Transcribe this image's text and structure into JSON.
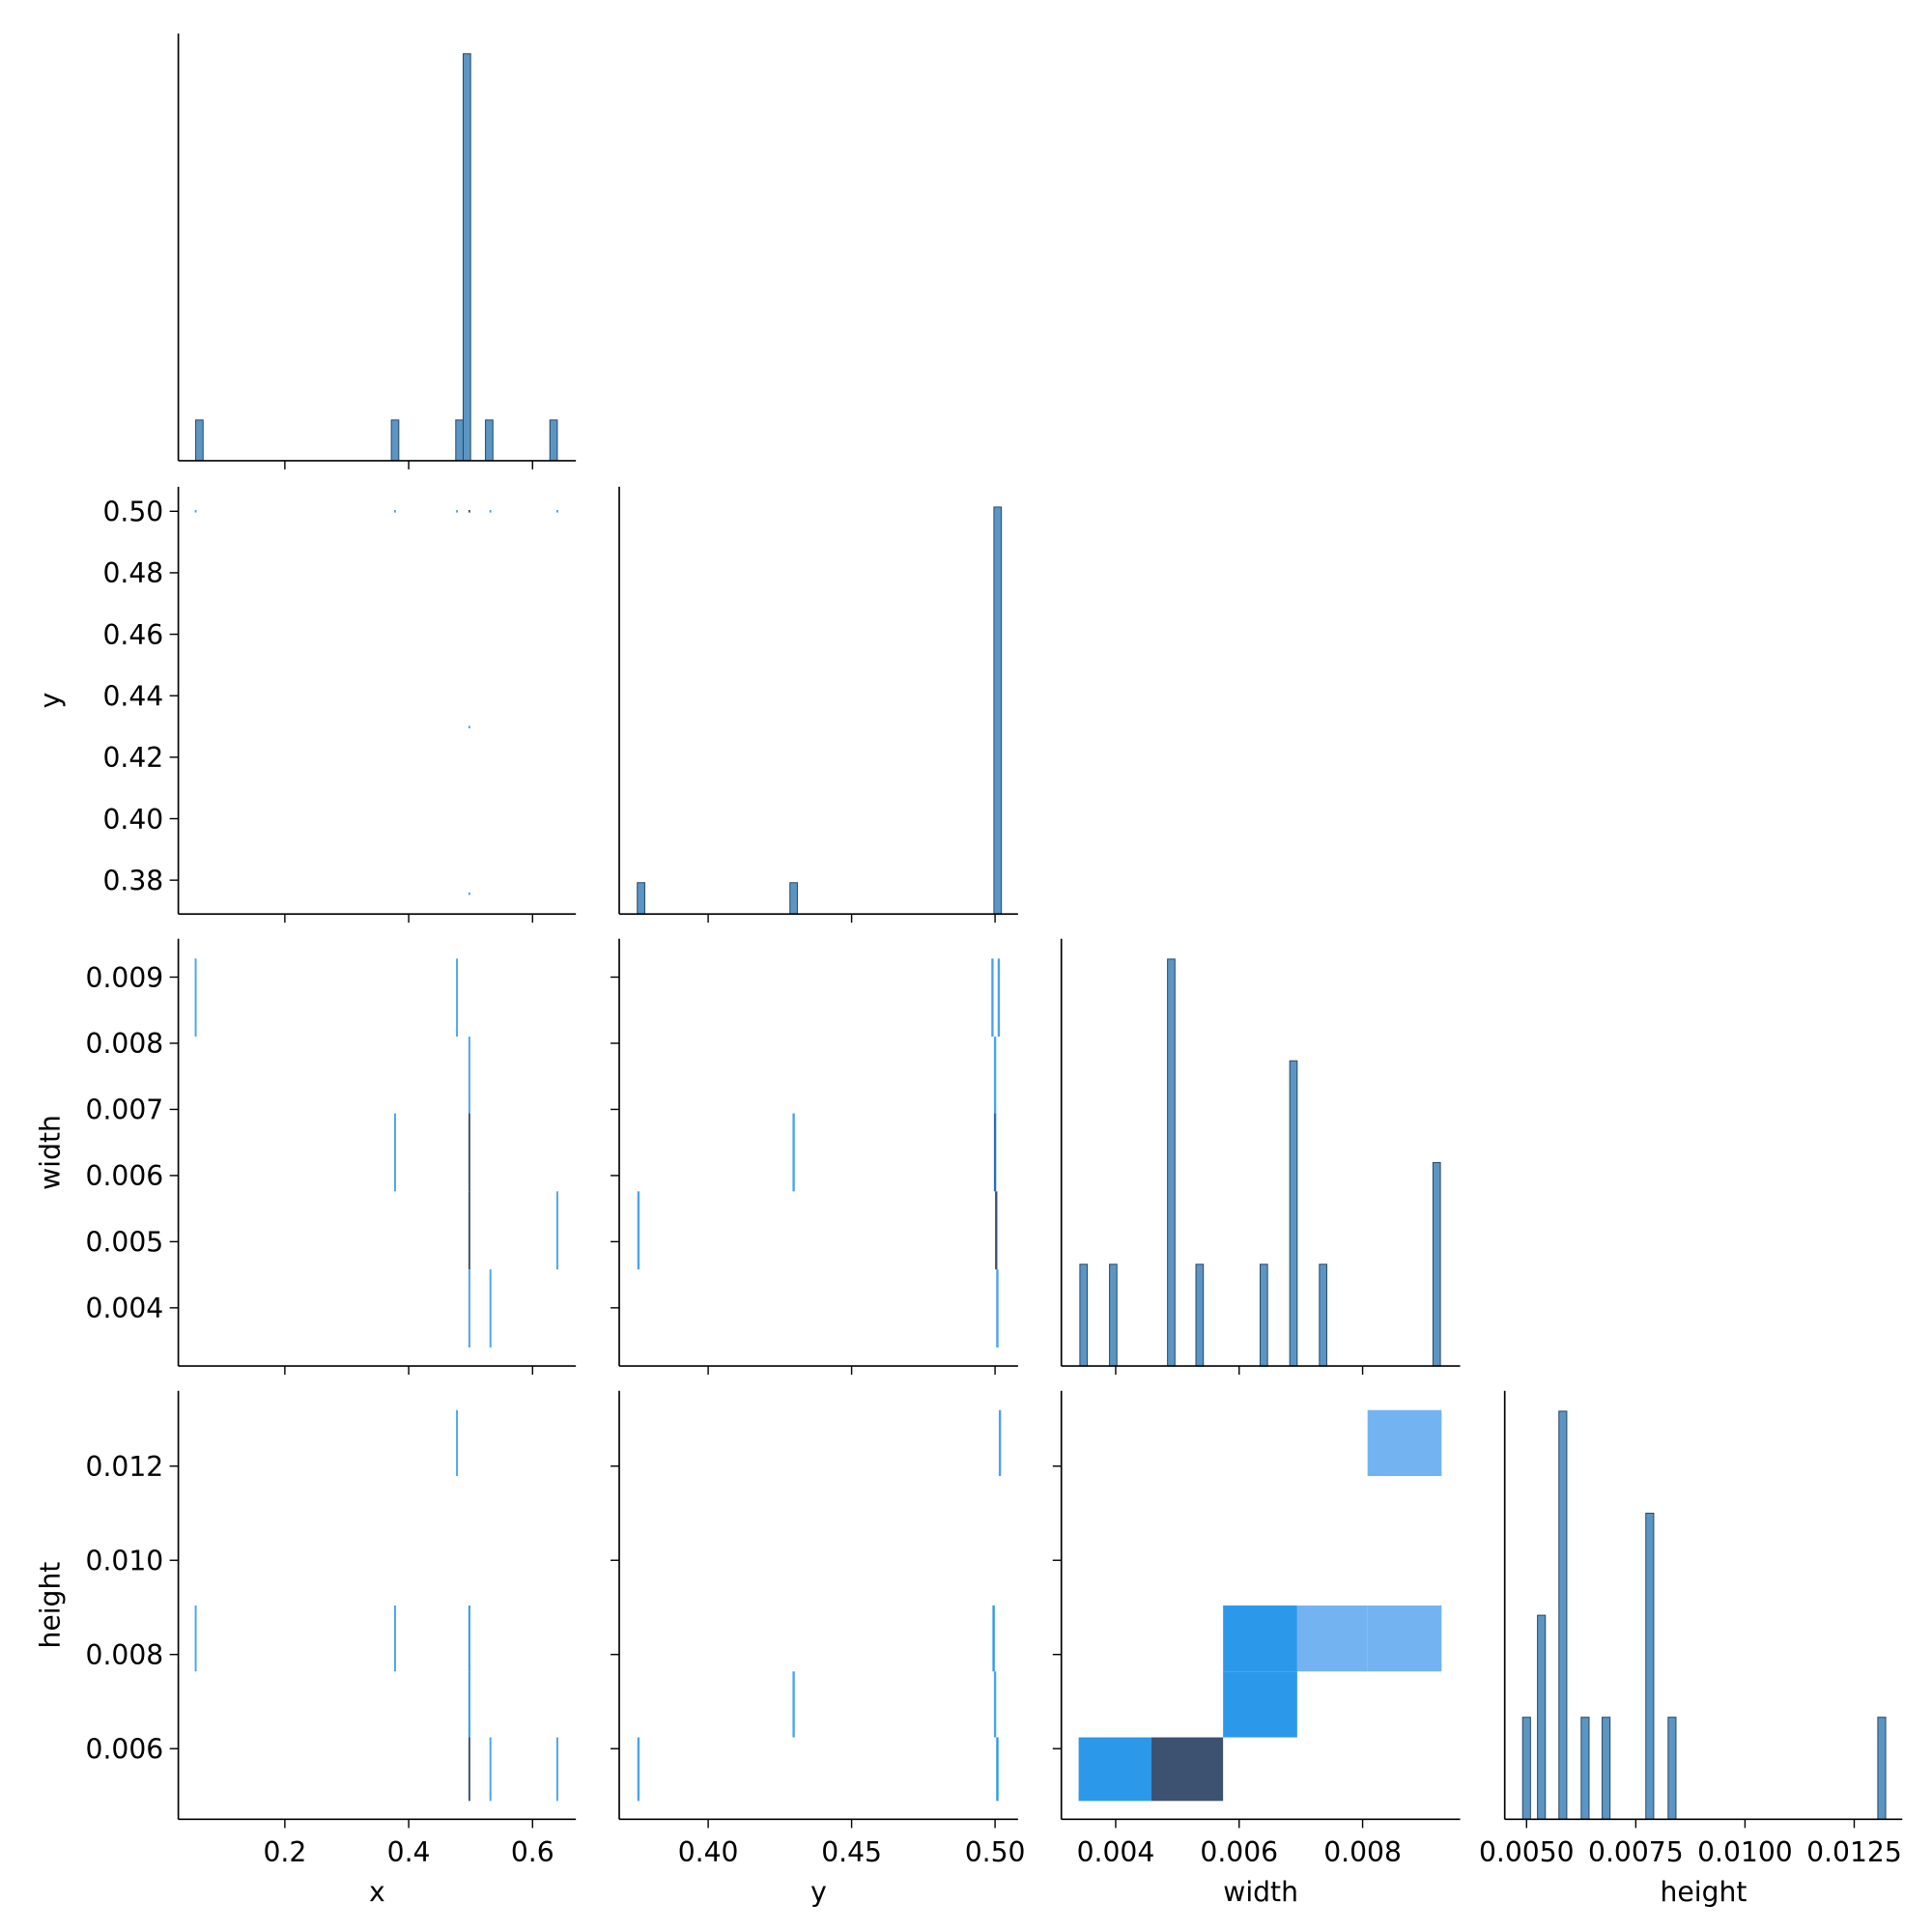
{
  "chart_data": [
    {
      "type": "histogram",
      "xlim": [
        0.028,
        0.67
      ],
      "xticks": [
        0.2,
        0.4,
        0.6
      ],
      "ylim": [
        0,
        10.5
      ],
      "bins": [
        0.056,
        0.068,
        0.372,
        0.384,
        0.476,
        0.488,
        0.5,
        0.524,
        0.536,
        0.628,
        0.64
      ],
      "counts": [
        1,
        0,
        1,
        0,
        1,
        10,
        0,
        1,
        0,
        1
      ],
      "color": "#5b95c4",
      "edgecolor": "#2b4a66"
    },
    {
      "type": "hist2d",
      "ylabel": "y",
      "xlim": [
        0.028,
        0.67
      ],
      "xticks": [
        0.2,
        0.4,
        0.6
      ],
      "ylim": [
        0.369,
        0.508
      ],
      "yticks": [
        0.38,
        {
          "value": 0.4,
          "label": "0.40"
        },
        0.42,
        0.44,
        0.46,
        0.48,
        {
          "value": 0.5,
          "label": "0.50"
        }
      ],
      "cells": [
        {
          "x": [
            0.0545,
            0.0575
          ],
          "y": [
            0.4996,
            0.5004
          ],
          "count": 1,
          "color": "#4aa3ee"
        },
        {
          "x": [
            0.3765,
            0.3795
          ],
          "y": [
            0.4996,
            0.5004
          ],
          "count": 1,
          "color": "#4aa3ee"
        },
        {
          "x": [
            0.4765,
            0.4795
          ],
          "y": [
            0.4996,
            0.5004
          ],
          "count": 1,
          "color": "#4aa3ee"
        },
        {
          "x": [
            0.4965,
            0.4995
          ],
          "y": [
            0.4996,
            0.5004
          ],
          "count": 9,
          "color": "#3d5170"
        },
        {
          "x": [
            0.5305,
            0.5335
          ],
          "y": [
            0.4996,
            0.5004
          ],
          "count": 1,
          "color": "#4aa3ee"
        },
        {
          "x": [
            0.6385,
            0.6415
          ],
          "y": [
            0.4996,
            0.5004
          ],
          "count": 1,
          "color": "#4aa3ee"
        },
        {
          "x": [
            0.4965,
            0.4995
          ],
          "y": [
            0.4294,
            0.4302
          ],
          "count": 1,
          "color": "#4aa3ee"
        },
        {
          "x": [
            0.4965,
            0.4995
          ],
          "y": [
            0.3752,
            0.376
          ],
          "count": 1,
          "color": "#4aa3ee"
        }
      ]
    },
    {
      "type": "histogram",
      "xlim": [
        0.369,
        0.508
      ],
      "xticks": [
        {
          "value": 0.4,
          "label": "0.40"
        },
        0.45,
        {
          "value": 0.5,
          "label": "0.50"
        }
      ],
      "ylim": [
        0,
        13.65
      ],
      "bins": [
        0.3753,
        0.3779,
        0.4285,
        0.4311,
        0.4996,
        0.5022
      ],
      "counts": [
        1,
        0,
        1,
        0,
        13
      ],
      "color": "#5b95c4",
      "edgecolor": "#2b4a66"
    },
    {
      "type": "hist2d",
      "ylabel": "width",
      "xlim": [
        0.028,
        0.67
      ],
      "xticks": [
        0.2,
        0.4,
        0.6
      ],
      "ylim": [
        0.00312,
        0.00958
      ],
      "yticks": [
        0.004,
        0.005,
        0.006,
        0.007,
        0.008,
        0.009
      ],
      "cells": [
        {
          "x": [
            0.0545,
            0.0575
          ],
          "y": [
            0.0081,
            0.00928
          ],
          "count": 1,
          "color": "#4aa3ee"
        },
        {
          "x": [
            0.4765,
            0.4795
          ],
          "y": [
            0.0081,
            0.00928
          ],
          "count": 1,
          "color": "#4aa3ee"
        },
        {
          "x": [
            0.4965,
            0.4995
          ],
          "y": [
            0.00694,
            0.0081
          ],
          "count": 1,
          "color": "#4aa3ee"
        },
        {
          "x": [
            0.4965,
            0.4995
          ],
          "y": [
            0.00576,
            0.00694
          ],
          "count": 3,
          "color": "#3d5170"
        },
        {
          "x": [
            0.4965,
            0.4995
          ],
          "y": [
            0.00458,
            0.00576
          ],
          "count": 3,
          "color": "#3d5170"
        },
        {
          "x": [
            0.4965,
            0.4995
          ],
          "y": [
            0.0034,
            0.00458
          ],
          "count": 1,
          "color": "#4aa3ee"
        },
        {
          "x": [
            0.3765,
            0.3795
          ],
          "y": [
            0.00576,
            0.00694
          ],
          "count": 1,
          "color": "#4aa3ee"
        },
        {
          "x": [
            0.6385,
            0.6415
          ],
          "y": [
            0.00458,
            0.00576
          ],
          "count": 1,
          "color": "#4aa3ee"
        },
        {
          "x": [
            0.5305,
            0.5335
          ],
          "y": [
            0.0034,
            0.00458
          ],
          "count": 1,
          "color": "#4aa3ee"
        }
      ]
    },
    {
      "type": "hist2d",
      "xlim": [
        0.369,
        0.508
      ],
      "xticks": [
        {
          "value": 0.4,
          "label": "0.40"
        },
        0.45,
        {
          "value": 0.5,
          "label": "0.50"
        }
      ],
      "ylim": [
        0.00312,
        0.00958
      ],
      "yticks": [
        0.004,
        0.005,
        0.006,
        0.007,
        0.008,
        0.009
      ],
      "cells": [
        {
          "x": [
            0.3753,
            0.3761
          ],
          "y": [
            0.00458,
            0.00576
          ],
          "count": 1,
          "color": "#4aa3ee"
        },
        {
          "x": [
            0.4294,
            0.4302
          ],
          "y": [
            0.00576,
            0.00694
          ],
          "count": 1,
          "color": "#4aa3ee"
        },
        {
          "x": [
            0.4987,
            0.4995
          ],
          "y": [
            0.0081,
            0.00928
          ],
          "count": 1,
          "color": "#4aa3ee"
        },
        {
          "x": [
            0.5009,
            0.5017
          ],
          "y": [
            0.0081,
            0.00928
          ],
          "count": 1,
          "color": "#4aa3ee"
        },
        {
          "x": [
            0.4996,
            0.5004
          ],
          "y": [
            0.00694,
            0.0081
          ],
          "count": 1,
          "color": "#4aa3ee"
        },
        {
          "x": [
            0.4996,
            0.5004
          ],
          "y": [
            0.00576,
            0.00694
          ],
          "count": 3,
          "color": "#2b6fb0"
        },
        {
          "x": [
            0.5,
            0.5008
          ],
          "y": [
            0.00458,
            0.00576
          ],
          "count": 4,
          "color": "#3d5170"
        },
        {
          "x": [
            0.5004,
            0.5012
          ],
          "y": [
            0.0034,
            0.00458
          ],
          "count": 2,
          "color": "#4aa3ee"
        }
      ]
    },
    {
      "type": "histogram",
      "xlim": [
        0.00312,
        0.00958
      ],
      "xticks": [
        0.004,
        0.006,
        0.008
      ],
      "ylim": [
        0,
        4.2
      ],
      "bins": [
        0.00342,
        0.00354,
        0.0039,
        0.00402,
        0.00484,
        0.00496,
        0.0053,
        0.00542,
        0.00634,
        0.00646,
        0.00682,
        0.00694,
        0.0073,
        0.00742,
        0.00914,
        0.00926
      ],
      "counts": [
        1,
        0,
        1,
        0,
        4,
        0,
        1,
        0,
        1,
        0,
        3,
        0,
        1,
        0,
        2
      ],
      "color": "#5b95c4",
      "edgecolor": "#2b4a66"
    },
    {
      "type": "hist2d",
      "xlabel": "x",
      "ylabel": "height",
      "xlim": [
        0.028,
        0.67
      ],
      "xticks": [
        0.2,
        0.4,
        0.6
      ],
      "ylim": [
        0.0045,
        0.0136
      ],
      "yticks": [
        0.006,
        0.008,
        {
          "value": 0.01,
          "label": "0.010"
        },
        0.012
      ],
      "cells": [
        {
          "x": [
            0.4765,
            0.4795
          ],
          "y": [
            0.01179,
            0.01319
          ],
          "count": 1,
          "color": "#4aa3ee"
        },
        {
          "x": [
            0.0545,
            0.0575
          ],
          "y": [
            0.00764,
            0.00904
          ],
          "count": 1,
          "color": "#4aa3ee"
        },
        {
          "x": [
            0.3765,
            0.3795
          ],
          "y": [
            0.00764,
            0.00904
          ],
          "count": 1,
          "color": "#4aa3ee"
        },
        {
          "x": [
            0.4965,
            0.4995
          ],
          "y": [
            0.00764,
            0.00904
          ],
          "count": 2,
          "color": "#2b98ea"
        },
        {
          "x": [
            0.4965,
            0.4995
          ],
          "y": [
            0.00624,
            0.00764
          ],
          "count": 2,
          "color": "#2b98ea"
        },
        {
          "x": [
            0.4965,
            0.4995
          ],
          "y": [
            0.00489,
            0.00624
          ],
          "count": 4,
          "color": "#3d5170"
        },
        {
          "x": [
            0.5305,
            0.5335
          ],
          "y": [
            0.00489,
            0.00624
          ],
          "count": 1,
          "color": "#4aa3ee"
        },
        {
          "x": [
            0.6385,
            0.6415
          ],
          "y": [
            0.00489,
            0.00624
          ],
          "count": 1,
          "color": "#4aa3ee"
        }
      ]
    },
    {
      "type": "hist2d",
      "xlabel": "y",
      "xlim": [
        0.369,
        0.508
      ],
      "xticks": [
        {
          "value": 0.4,
          "label": "0.40"
        },
        0.45,
        {
          "value": 0.5,
          "label": "0.50"
        }
      ],
      "ylim": [
        0.0045,
        0.0136
      ],
      "yticks": [
        0.006,
        0.008,
        {
          "value": 0.01,
          "label": "0.010"
        },
        0.012
      ],
      "cells": [
        {
          "x": [
            0.3753,
            0.3761
          ],
          "y": [
            0.00489,
            0.00624
          ],
          "count": 1,
          "color": "#4aa3ee"
        },
        {
          "x": [
            0.4294,
            0.4302
          ],
          "y": [
            0.00624,
            0.00764
          ],
          "count": 1,
          "color": "#4aa3ee"
        },
        {
          "x": [
            0.5013,
            0.5021
          ],
          "y": [
            0.01179,
            0.01319
          ],
          "count": 1,
          "color": "#4aa3ee"
        },
        {
          "x": [
            0.4991,
            0.4999
          ],
          "y": [
            0.00764,
            0.00904
          ],
          "count": 2,
          "color": "#2b98ea"
        },
        {
          "x": [
            0.4996,
            0.5004
          ],
          "y": [
            0.00624,
            0.00764
          ],
          "count": 1,
          "color": "#4aa3ee"
        },
        {
          "x": [
            0.5004,
            0.5012
          ],
          "y": [
            0.00489,
            0.00624
          ],
          "count": 3,
          "color": "#2b98ea"
        }
      ]
    },
    {
      "type": "hist2d",
      "xlabel": "width",
      "xlim": [
        0.00312,
        0.00958
      ],
      "xticks": [
        0.004,
        0.006,
        0.008
      ],
      "ylim": [
        0.0045,
        0.0136
      ],
      "yticks": [
        0.006,
        0.008,
        {
          "value": 0.01,
          "label": "0.010"
        },
        0.012
      ],
      "cells": [
        {
          "x": [
            0.00808,
            0.00928
          ],
          "y": [
            0.01179,
            0.01319
          ],
          "count": 1,
          "color": "#74b3f2"
        },
        {
          "x": [
            0.00694,
            0.00808
          ],
          "y": [
            0.00764,
            0.00904
          ],
          "count": 1,
          "color": "#74b3f2"
        },
        {
          "x": [
            0.00808,
            0.00928
          ],
          "y": [
            0.00764,
            0.00904
          ],
          "count": 1,
          "color": "#74b3f2"
        },
        {
          "x": [
            0.00574,
            0.00694
          ],
          "y": [
            0.00764,
            0.00904
          ],
          "count": 2,
          "color": "#2b98ea"
        },
        {
          "x": [
            0.00574,
            0.00694
          ],
          "y": [
            0.00624,
            0.00764
          ],
          "count": 2,
          "color": "#2b98ea"
        },
        {
          "x": [
            0.0034,
            0.00458
          ],
          "y": [
            0.00489,
            0.00624
          ],
          "count": 2,
          "color": "#2b98ea"
        },
        {
          "x": [
            0.00458,
            0.00574
          ],
          "y": [
            0.00489,
            0.00624
          ],
          "count": 5,
          "color": "#3d5170"
        }
      ]
    },
    {
      "type": "histogram",
      "xlabel": "height",
      "xlim": [
        0.0045,
        0.0136
      ],
      "xticks": [
        {
          "value": 0.005,
          "label": "0.0050"
        },
        0.0075,
        {
          "value": 0.01,
          "label": "0.0100"
        },
        0.0125
      ],
      "ylim": [
        0,
        4.2
      ],
      "bins": [
        0.00491,
        0.00509,
        0.00525,
        0.00543,
        0.00574,
        0.00592,
        0.00625,
        0.00643,
        0.00673,
        0.00691,
        0.00773,
        0.00791,
        0.00824,
        0.00842,
        0.01304,
        0.01322
      ],
      "counts": [
        1,
        0,
        2,
        0,
        4,
        0,
        1,
        0,
        1,
        0,
        3,
        0,
        1,
        0,
        1
      ],
      "color": "#5b95c4",
      "edgecolor": "#2b4a66"
    }
  ]
}
